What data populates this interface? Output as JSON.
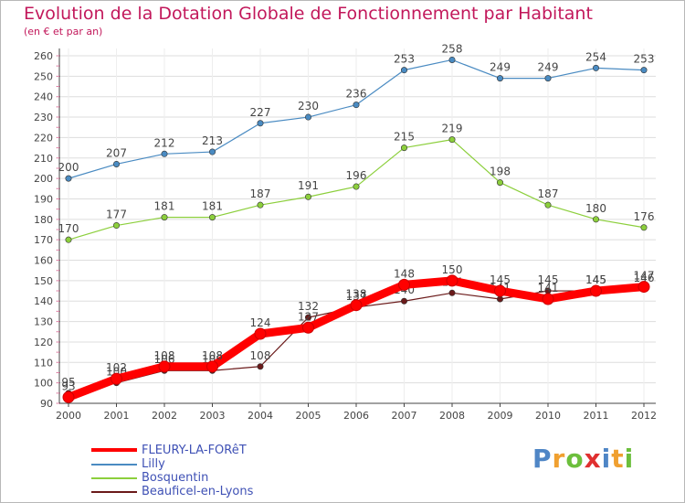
{
  "chart_data": {
    "type": "line",
    "title": "Evolution de la Dotation Globale de Fonctionnement par Habitant",
    "subtitle": "(en € et par an)",
    "xlabel": "",
    "ylabel": "",
    "categories": [
      "2000",
      "2001",
      "2002",
      "2003",
      "2004",
      "2005",
      "2006",
      "2007",
      "2008",
      "2009",
      "2010",
      "2011",
      "2012"
    ],
    "ylim": [
      90,
      260
    ],
    "yticks": [
      90,
      100,
      110,
      120,
      130,
      140,
      150,
      160,
      170,
      180,
      190,
      200,
      210,
      220,
      230,
      240,
      250,
      260
    ],
    "grid": true,
    "legend_position": "bottom-left",
    "series": [
      {
        "name": "FLEURY-LA-FORêT",
        "color": "#ff0000",
        "values": [
          93,
          102,
          108,
          108,
          124,
          127,
          138,
          148,
          150,
          145,
          141,
          145,
          147
        ]
      },
      {
        "name": "Lilly",
        "color": "#4a8bc2",
        "values": [
          200,
          207,
          212,
          213,
          227,
          230,
          236,
          253,
          258,
          249,
          249,
          254,
          253
        ]
      },
      {
        "name": "Bosquentin",
        "color": "#8ccf3c",
        "values": [
          170,
          177,
          181,
          181,
          187,
          191,
          196,
          215,
          219,
          198,
          187,
          180,
          176
        ]
      },
      {
        "name": "Beauficel-en-Lyons",
        "color": "#6b1a1a",
        "values": [
          95,
          100,
          106,
          106,
          108,
          132,
          137,
          140,
          144,
          141,
          145,
          145,
          146
        ]
      }
    ]
  },
  "logo": {
    "letters": [
      "P",
      "r",
      "o",
      "x",
      "i",
      "t",
      "i"
    ],
    "colors": [
      "#4f86c6",
      "#f0a030",
      "#6cbf3c",
      "#e03030",
      "#4f86c6",
      "#f0a030",
      "#6cbf3c"
    ]
  }
}
